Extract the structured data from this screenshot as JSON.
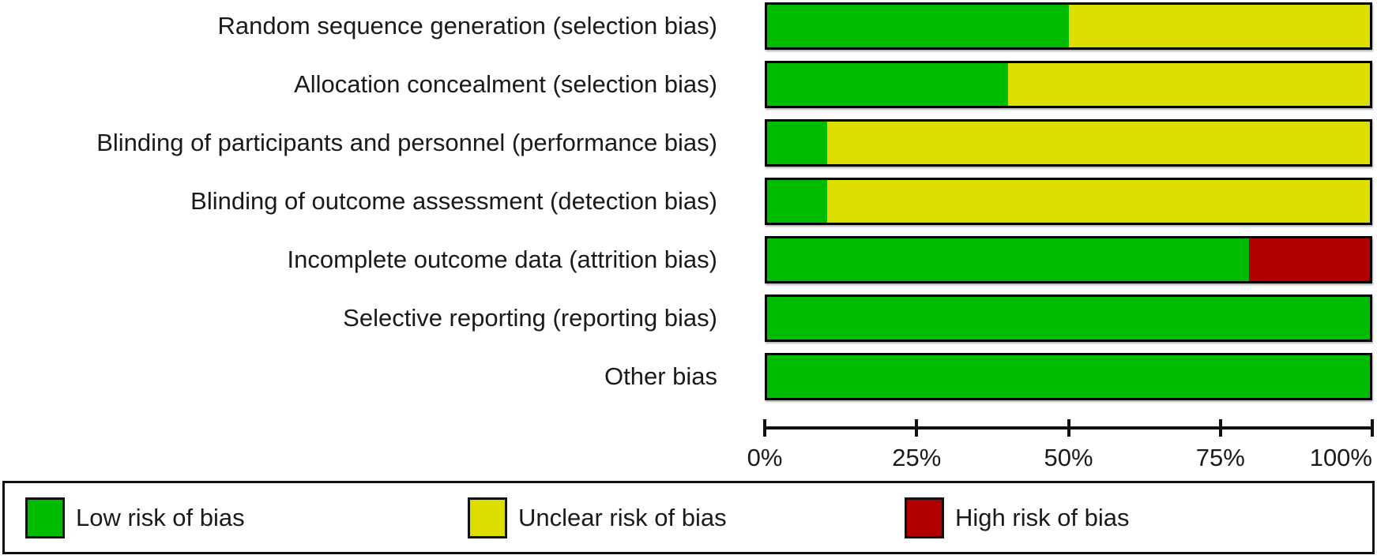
{
  "chart_data": {
    "type": "bar",
    "variant": "horizontal-stacked",
    "title": "",
    "categories": [
      "Random sequence generation (selection bias)",
      "Allocation concealment (selection bias)",
      "Blinding of participants and personnel (performance bias)",
      "Blinding of outcome assessment (detection bias)",
      "Incomplete outcome data (attrition bias)",
      "Selective reporting (reporting bias)",
      "Other bias"
    ],
    "series": [
      {
        "key": "low",
        "name": "Low risk of bias",
        "color": "#00BC00",
        "values": [
          50,
          40,
          10,
          10,
          80,
          100,
          100
        ]
      },
      {
        "key": "unclear",
        "name": "Unclear risk of bias",
        "color": "#DDDD00",
        "values": [
          50,
          60,
          90,
          90,
          0,
          0,
          0
        ]
      },
      {
        "key": "high",
        "name": "High risk of bias",
        "color": "#B20000",
        "values": [
          0,
          0,
          0,
          0,
          20,
          0,
          0
        ]
      }
    ],
    "x_axis": {
      "ticks": [
        {
          "label": "0%",
          "value": 0
        },
        {
          "label": "25%",
          "value": 25
        },
        {
          "label": "50%",
          "value": 50
        },
        {
          "label": "75%",
          "value": 75
        },
        {
          "label": "100%",
          "value": 100
        }
      ],
      "xlim": [
        0,
        100
      ]
    },
    "grid": false,
    "legend_position": "bottom"
  },
  "colors": {
    "low_risk": "#00BC00",
    "unclear_risk": "#DDDD00",
    "high_risk": "#B20000",
    "bar_border": "#000000",
    "text": "#1a1a1a"
  }
}
